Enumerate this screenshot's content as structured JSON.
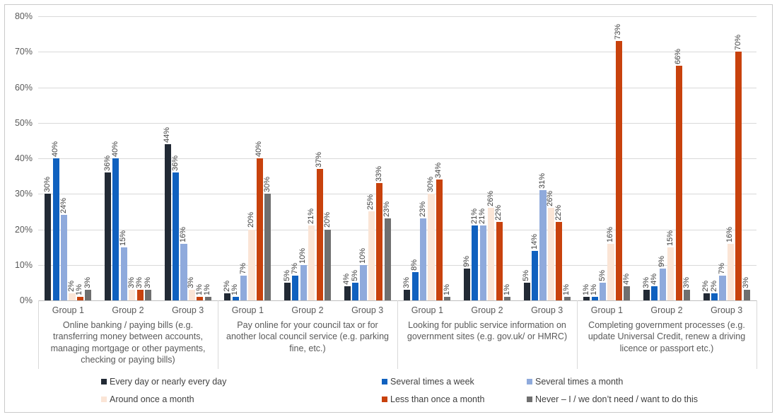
{
  "chart_data": {
    "type": "bar",
    "title": "",
    "xlabel": "",
    "ylabel": "",
    "ylim": [
      0,
      80
    ],
    "yticks": [
      "0%",
      "10%",
      "20%",
      "30%",
      "40%",
      "50%",
      "60%",
      "70%",
      "80%"
    ],
    "value_suffix": "%",
    "grid": true,
    "legend_position": "bottom",
    "series": [
      {
        "name": "Every day or nearly every day",
        "color": "#222A35"
      },
      {
        "name": "Several times a week",
        "color": "#1061BF"
      },
      {
        "name": "Several times a month",
        "color": "#8FAADC"
      },
      {
        "name": "Around once a month",
        "color": "#FBE5D6"
      },
      {
        "name": "Less than once a month",
        "color": "#C8420D"
      },
      {
        "name": "Never – I / we don’t need / want to do this",
        "color": "#6F6F6F"
      }
    ],
    "groups": [
      "Group 1",
      "Group 2",
      "Group 3"
    ],
    "panels": [
      {
        "label": "Online banking / paying bills (e.g. transferring money between accounts, managing mortgage or other payments, checking or paying bills)",
        "label_lines": [
          "Online banking / paying bills (e.g.",
          "transferring money between accounts,",
          "managing mortgage or other payments,",
          "checking or paying bills)"
        ],
        "values": [
          [
            30,
            40,
            24,
            2,
            1,
            3
          ],
          [
            36,
            40,
            15,
            3,
            3,
            3
          ],
          [
            44,
            36,
            16,
            3,
            1,
            1
          ]
        ]
      },
      {
        "label": "Pay online for your council tax or for another local council service (e.g. parking fine, etc.)",
        "label_lines": [
          "Pay online for your council tax or for",
          "another local council service (e.g. parking",
          "fine, etc.)"
        ],
        "values": [
          [
            2,
            1,
            7,
            20,
            40,
            30
          ],
          [
            5,
            7,
            10,
            21,
            37,
            20
          ],
          [
            4,
            5,
            10,
            25,
            33,
            23
          ]
        ]
      },
      {
        "label": "Looking for public service information on government sites (e.g. gov.uk/ or HMRC)",
        "label_lines": [
          "Looking for public service information on",
          "government sites (e.g. gov.uk/ or HMRC)"
        ],
        "values": [
          [
            3,
            8,
            23,
            30,
            34,
            1
          ],
          [
            9,
            21,
            21,
            26,
            22,
            1
          ],
          [
            5,
            14,
            31,
            26,
            22,
            1
          ]
        ]
      },
      {
        "label": "Completing government processes (e.g. update Universal Credit, renew a driving licence or passport etc.)",
        "label_lines": [
          "Completing government processes (e.g.",
          "update Universal Credit, renew a driving",
          "licence or passport etc.)"
        ],
        "values": [
          [
            1,
            1,
            5,
            16,
            73,
            4
          ],
          [
            3,
            4,
            9,
            15,
            66,
            3
          ],
          [
            2,
            2,
            7,
            16,
            70,
            3
          ]
        ]
      }
    ]
  }
}
